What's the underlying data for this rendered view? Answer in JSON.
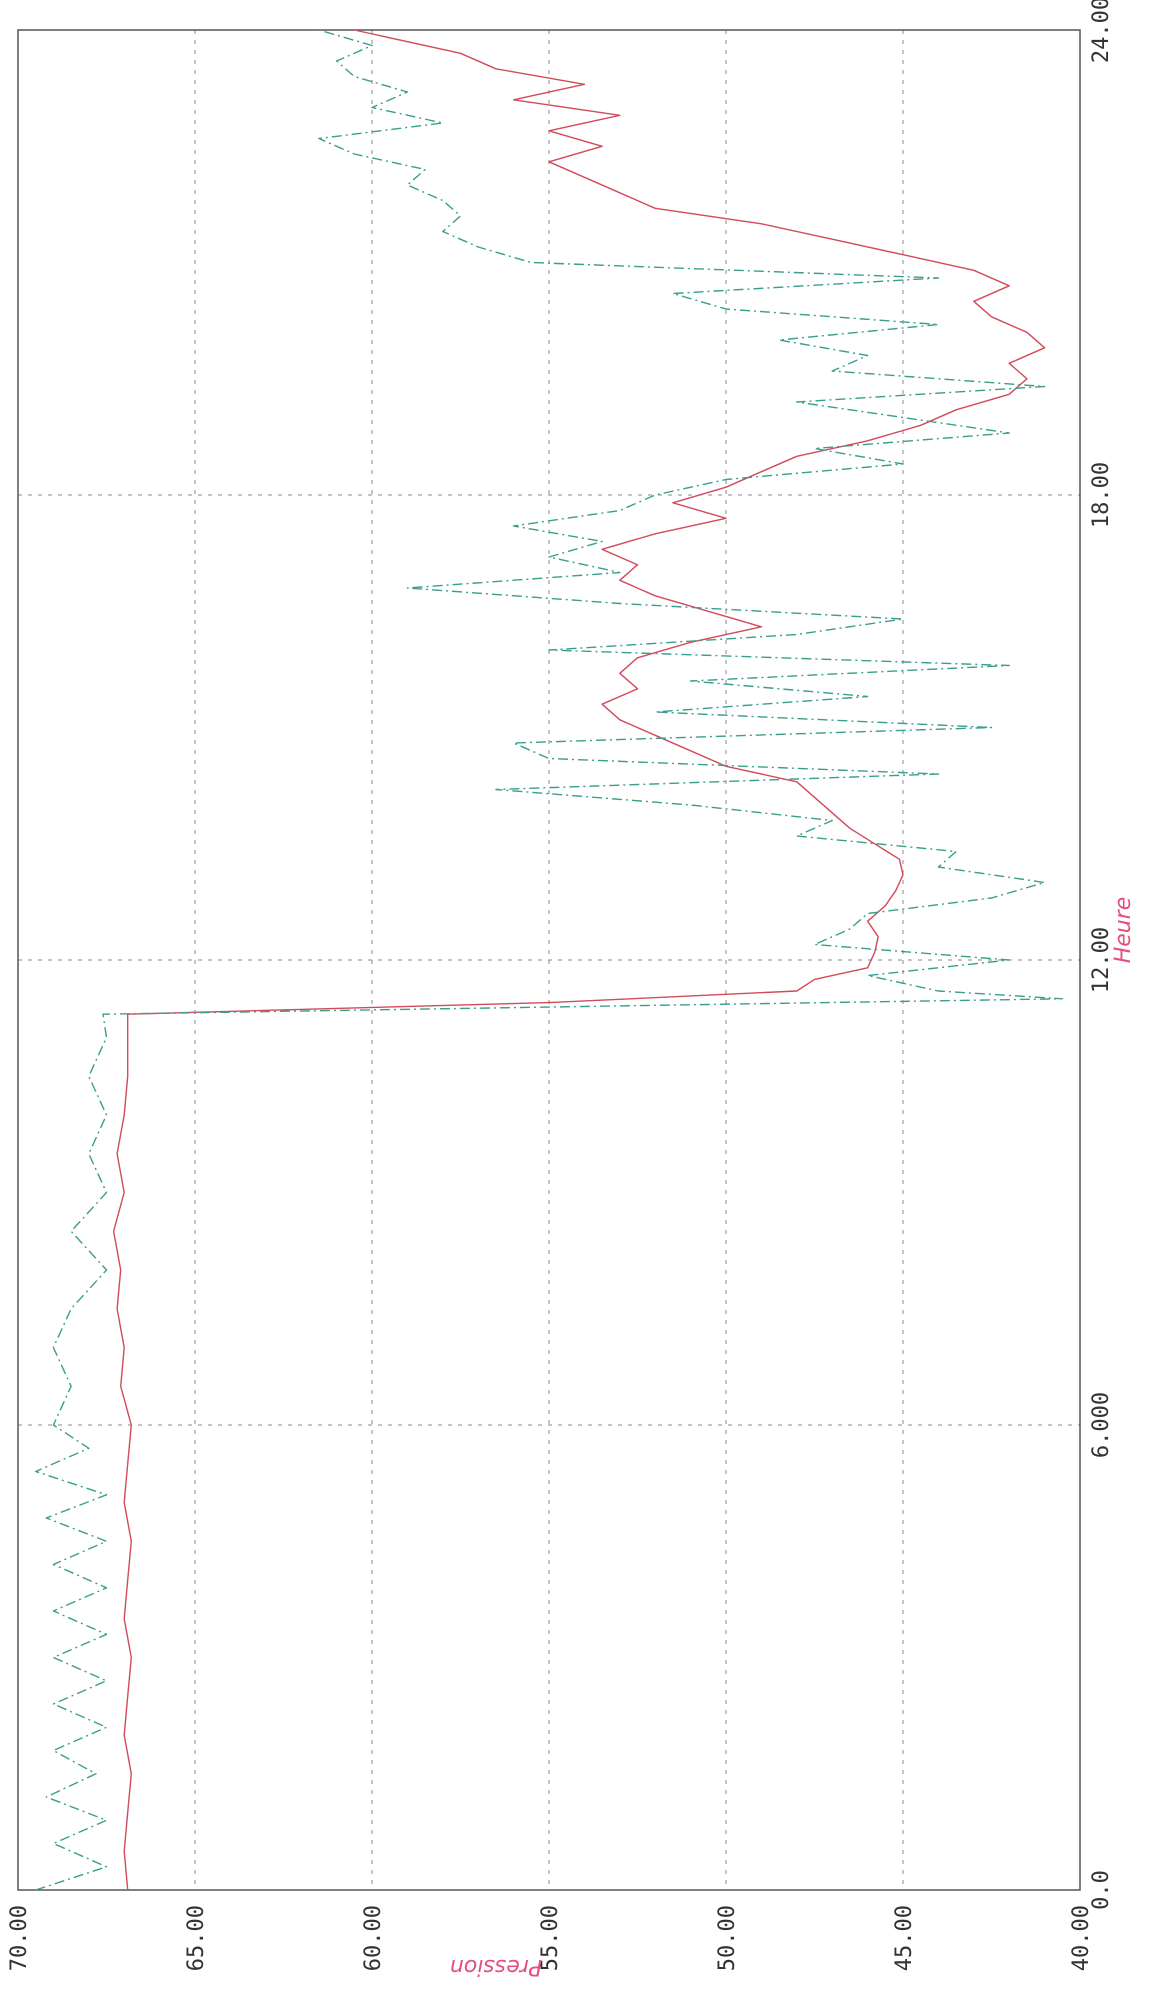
{
  "chart_data": {
    "type": "line",
    "orientation": "rotated 90° clockwise (x axis runs top-to-bottom on the right edge, y axis runs left-to-right along the bottom edge)",
    "xlabel": "Heure",
    "ylabel": "Pression",
    "xlim": [
      0,
      24
    ],
    "ylim": [
      40,
      70
    ],
    "x_tick_labels": [
      "0.0",
      "6.000",
      "12.00",
      "18.00",
      "24.00"
    ],
    "y_tick_labels": [
      "70.00",
      "65.00",
      "60.00",
      "55.00",
      "50.00",
      "45.00",
      "40.00"
    ],
    "grid": true,
    "colors": {
      "axis_label": "#e4507a",
      "frame": "#555555",
      "grid": "#888888"
    },
    "series": [
      {
        "color": "#d24b5a",
        "style": "solid",
        "x": [
          0.0,
          0.5,
          1.0,
          1.5,
          2.0,
          2.5,
          3.0,
          3.5,
          4.0,
          4.5,
          5.0,
          5.5,
          6.0,
          6.5,
          7.0,
          7.5,
          8.0,
          8.5,
          9.0,
          9.5,
          10.0,
          10.5,
          11.0,
          11.3,
          11.45,
          11.6,
          11.75,
          11.9,
          12.1,
          12.3,
          12.5,
          12.7,
          12.9,
          13.1,
          13.3,
          13.5,
          13.7,
          13.9,
          14.1,
          14.3,
          14.5,
          14.7,
          14.9,
          15.1,
          15.3,
          15.5,
          15.7,
          15.9,
          16.1,
          16.3,
          16.5,
          16.7,
          16.9,
          17.1,
          17.3,
          17.5,
          17.7,
          17.9,
          18.1,
          18.3,
          18.5,
          18.7,
          18.9,
          19.1,
          19.3,
          19.5,
          19.7,
          19.9,
          20.1,
          20.3,
          20.5,
          20.7,
          20.9,
          21.1,
          21.3,
          21.5,
          21.7,
          21.9,
          22.1,
          22.3,
          22.5,
          22.7,
          22.9,
          23.1,
          23.3,
          23.5,
          23.7,
          24.0
        ],
        "y": [
          66.9,
          67.0,
          66.9,
          66.8,
          67.0,
          66.9,
          66.8,
          67.0,
          66.9,
          66.8,
          67.0,
          66.9,
          66.8,
          67.1,
          67.0,
          67.2,
          67.1,
          67.3,
          67.0,
          67.2,
          67.0,
          66.9,
          66.9,
          66.9,
          55.0,
          48.0,
          47.5,
          46.0,
          45.8,
          45.7,
          46.0,
          45.5,
          45.2,
          45.0,
          45.1,
          45.8,
          46.5,
          47.0,
          47.5,
          48.0,
          50.0,
          51.0,
          52.0,
          53.0,
          53.5,
          52.5,
          53.0,
          52.5,
          51.0,
          49.0,
          50.5,
          52.0,
          53.0,
          52.5,
          53.5,
          52.0,
          50.0,
          51.5,
          50.0,
          49.0,
          48.0,
          46.0,
          44.5,
          43.5,
          42.0,
          41.5,
          42.0,
          41.0,
          41.5,
          42.5,
          43.0,
          42.0,
          43.0,
          45.0,
          47.0,
          49.0,
          52.0,
          53.0,
          54.0,
          55.0,
          53.5,
          55.0,
          53.0,
          56.0,
          54.0,
          56.5,
          57.5,
          60.5
        ]
      },
      {
        "color": "#3a9e8e",
        "style": "dash-dot",
        "x": [
          0.0,
          0.3,
          0.6,
          0.9,
          1.2,
          1.5,
          1.8,
          2.1,
          2.4,
          2.7,
          3.0,
          3.3,
          3.6,
          3.9,
          4.2,
          4.5,
          4.8,
          5.1,
          5.4,
          5.7,
          6.0,
          6.5,
          7.0,
          7.5,
          8.0,
          8.5,
          9.0,
          9.5,
          10.0,
          10.5,
          11.0,
          11.3,
          11.5,
          11.6,
          11.8,
          12.0,
          12.2,
          12.4,
          12.6,
          12.8,
          13.0,
          13.2,
          13.4,
          13.6,
          13.8,
          14.0,
          14.2,
          14.4,
          14.6,
          14.8,
          15.0,
          15.2,
          15.4,
          15.6,
          15.8,
          16.0,
          16.2,
          16.4,
          16.6,
          16.8,
          17.0,
          17.2,
          17.4,
          17.6,
          17.8,
          18.0,
          18.2,
          18.4,
          18.6,
          18.8,
          19.0,
          19.2,
          19.4,
          19.6,
          19.8,
          20.0,
          20.2,
          20.4,
          20.6,
          20.8,
          21.0,
          21.2,
          21.4,
          21.6,
          21.8,
          22.0,
          22.2,
          22.4,
          22.6,
          22.8,
          23.0,
          23.2,
          23.4,
          23.6,
          23.8,
          24.0
        ],
        "y": [
          69.5,
          67.5,
          69.0,
          67.5,
          69.2,
          67.8,
          69.0,
          67.5,
          69.0,
          67.5,
          69.0,
          67.5,
          69.0,
          67.5,
          69.0,
          67.5,
          69.2,
          67.5,
          69.5,
          68.0,
          69.0,
          68.5,
          69.0,
          68.5,
          67.5,
          68.5,
          67.5,
          68.0,
          67.5,
          68.0,
          67.5,
          67.6,
          40.5,
          44.0,
          46.0,
          42.0,
          47.5,
          46.5,
          46.0,
          42.5,
          41.0,
          44.0,
          43.5,
          48.0,
          47.0,
          51.0,
          56.5,
          44.0,
          55.0,
          56.0,
          42.5,
          52.0,
          46.0,
          51.0,
          42.0,
          55.0,
          48.0,
          45.0,
          53.0,
          59.0,
          53.0,
          55.0,
          53.5,
          56.0,
          53.0,
          52.0,
          50.0,
          45.0,
          47.5,
          42.0,
          45.0,
          48.0,
          41.0,
          47.0,
          46.0,
          48.5,
          44.0,
          50.0,
          51.5,
          44.0,
          55.5,
          57.0,
          58.0,
          57.5,
          58.0,
          59.0,
          58.5,
          60.5,
          61.5,
          58.0,
          60.0,
          59.0,
          60.5,
          61.0,
          60.0,
          61.5
        ]
      }
    ]
  }
}
